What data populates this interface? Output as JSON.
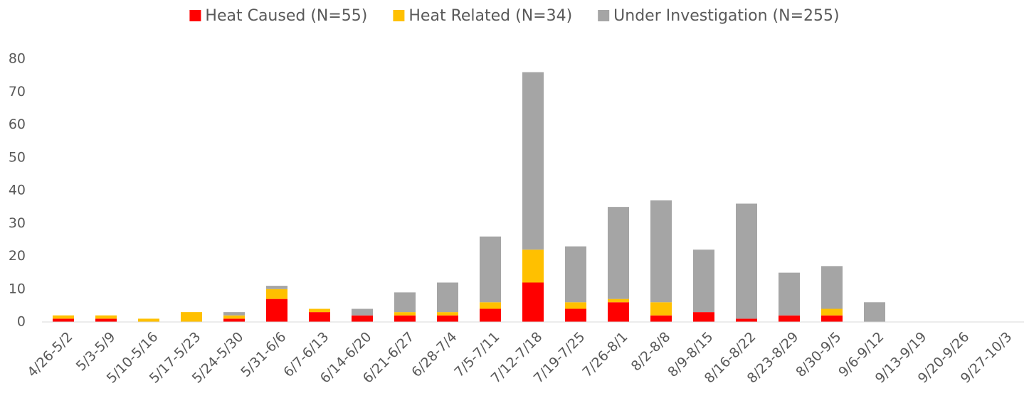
{
  "chart_data": {
    "type": "stacked-bar",
    "categories": [
      "4/26-5/2",
      "5/3-5/9",
      "5/10-5/16",
      "5/17-5/23",
      "5/24-5/30",
      "5/31-6/6",
      "6/7-6/13",
      "6/14-6/20",
      "6/21-6/27",
      "6/28-7/4",
      "7/5-7/11",
      "7/12-7/18",
      "7/19-7/25",
      "7/26-8/1",
      "8/2-8/8",
      "8/9-8/15",
      "8/16-8/22",
      "8/23-8/29",
      "8/30-9/5",
      "9/6-9/12",
      "9/13-9/19",
      "9/20-9/26",
      "9/27-10/3"
    ],
    "series": [
      {
        "name": "Heat Caused (N=55)",
        "color": "#ff0000",
        "values": [
          1,
          1,
          0,
          0,
          1,
          7,
          3,
          2,
          2,
          2,
          4,
          12,
          4,
          6,
          2,
          3,
          1,
          2,
          2,
          0,
          0,
          0,
          0
        ]
      },
      {
        "name": "Heat Related (N=34)",
        "color": "#ffc000",
        "values": [
          1,
          1,
          1,
          3,
          1,
          3,
          1,
          0,
          1,
          1,
          2,
          10,
          2,
          1,
          4,
          0,
          0,
          0,
          2,
          0,
          0,
          0,
          0
        ]
      },
      {
        "name": "Under Investigation (N=255)",
        "color": "#a5a5a5",
        "values": [
          0,
          0,
          0,
          0,
          1,
          1,
          0,
          2,
          6,
          9,
          20,
          54,
          17,
          28,
          31,
          19,
          35,
          13,
          13,
          6,
          0,
          0,
          0
        ]
      }
    ],
    "ylim": [
      0,
      80
    ],
    "yticks": [
      0,
      10,
      20,
      30,
      40,
      50,
      60,
      70,
      80
    ],
    "grid": false,
    "legend": "top"
  }
}
